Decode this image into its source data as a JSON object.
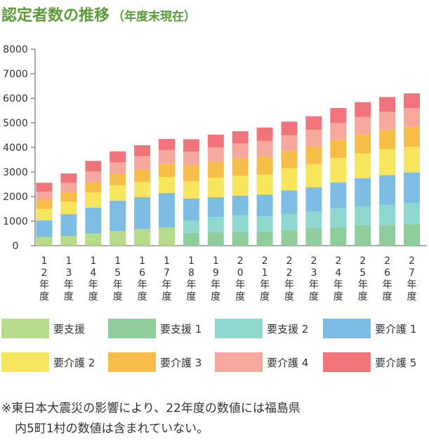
{
  "header": {
    "title": "認定者数の推移",
    "subtitle": "（年度末現在）"
  },
  "chart_data": {
    "type": "bar",
    "stacked": true,
    "title": "認定者数の推移",
    "ylim": [
      0,
      8000
    ],
    "yticks": [
      "8000",
      "7000",
      "6000",
      "5000",
      "4000",
      "3000",
      "2000",
      "1000",
      "0"
    ],
    "categories": [
      "12年度",
      "13年度",
      "14年度",
      "15年度",
      "16年度",
      "17年度",
      "18年度",
      "19年度",
      "20年度",
      "21年度",
      "22年度",
      "23年度",
      "24年度",
      "25年度",
      "26年度",
      "27年度"
    ],
    "category_label_chars": [
      [
        "1",
        "2",
        "年",
        "度"
      ],
      [
        "1",
        "3",
        "年",
        "度"
      ],
      [
        "1",
        "4",
        "年",
        "度"
      ],
      [
        "1",
        "5",
        "年",
        "度"
      ],
      [
        "1",
        "6",
        "年",
        "度"
      ],
      [
        "1",
        "7",
        "年",
        "度"
      ],
      [
        "1",
        "8",
        "年",
        "度"
      ],
      [
        "1",
        "9",
        "年",
        "度"
      ],
      [
        "2",
        "0",
        "年",
        "度"
      ],
      [
        "2",
        "1",
        "年",
        "度"
      ],
      [
        "2",
        "2",
        "年",
        "度"
      ],
      [
        "2",
        "3",
        "年",
        "度"
      ],
      [
        "2",
        "4",
        "年",
        "度"
      ],
      [
        "2",
        "5",
        "年",
        "度"
      ],
      [
        "2",
        "6",
        "年",
        "度"
      ],
      [
        "2",
        "7",
        "年",
        "度"
      ]
    ],
    "series": [
      {
        "name": "要支援",
        "color": "#b5db8b",
        "values": [
          350,
          400,
          500,
          600,
          680,
          740,
          0,
          0,
          0,
          0,
          0,
          0,
          0,
          0,
          0,
          0
        ]
      },
      {
        "name": "要支援 1",
        "color": "#8fce9c",
        "values": [
          0,
          0,
          0,
          0,
          0,
          0,
          520,
          550,
          560,
          590,
          640,
          700,
          760,
          830,
          850,
          880
        ]
      },
      {
        "name": "要支援 2",
        "color": "#8fd8d0",
        "values": [
          0,
          0,
          0,
          0,
          0,
          0,
          500,
          620,
          680,
          610,
          660,
          680,
          760,
          770,
          820,
          850
        ]
      },
      {
        "name": "要介護 1",
        "color": "#7dbde3",
        "values": [
          680,
          880,
          1050,
          1230,
          1300,
          1410,
          900,
          800,
          800,
          880,
          950,
          1000,
          1050,
          1150,
          1200,
          1250
        ]
      },
      {
        "name": "要介護 2",
        "color": "#f7e55d",
        "values": [
          470,
          520,
          620,
          620,
          620,
          640,
          700,
          800,
          800,
          820,
          900,
          940,
          1000,
          1000,
          1050,
          1050
        ]
      },
      {
        "name": "要介護 3",
        "color": "#f6bd48",
        "values": [
          370,
          400,
          430,
          480,
          520,
          560,
          660,
          650,
          720,
          730,
          700,
          720,
          750,
          770,
          800,
          820
        ]
      },
      {
        "name": "要介護 4",
        "color": "#f7a89c",
        "values": [
          330,
          360,
          420,
          460,
          520,
          540,
          550,
          580,
          600,
          630,
          650,
          680,
          680,
          720,
          730,
          750
        ]
      },
      {
        "name": "要介護 5",
        "color": "#f07479",
        "values": [
          360,
          380,
          430,
          450,
          450,
          450,
          500,
          520,
          500,
          550,
          550,
          550,
          600,
          600,
          600,
          600
        ]
      }
    ]
  },
  "footnote": {
    "line1": "※東日本大震災の影響により、22年度の数値には福島県",
    "line2": "内5町1村の数値は含まれていない。"
  }
}
